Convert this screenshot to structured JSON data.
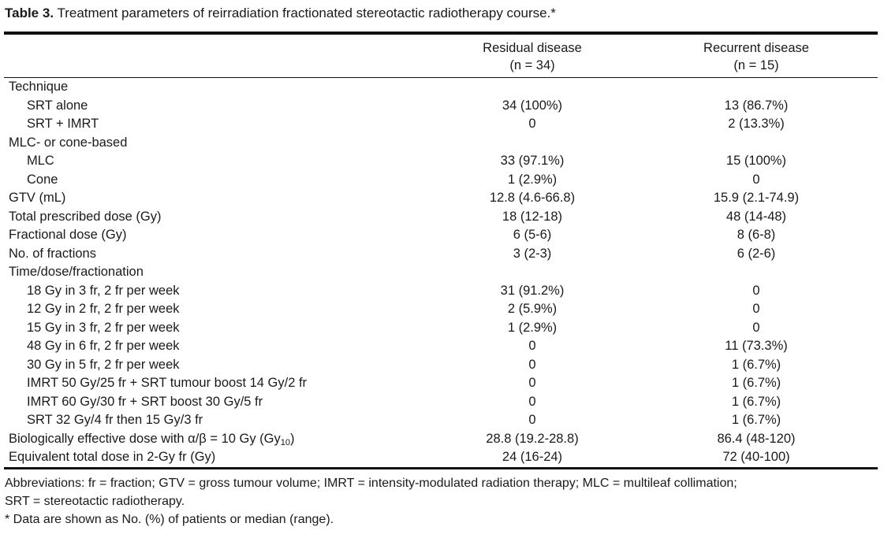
{
  "caption": {
    "label": "Table 3.",
    "text": "Treatment parameters of reirradiation fractionated stereotactic radiotherapy course.*"
  },
  "header": {
    "col1_line1": "Residual disease",
    "col1_line2": "(n = 34)",
    "col2_line1": "Recurrent disease",
    "col2_line2": "(n = 15)"
  },
  "rows": [
    {
      "label": "Technique",
      "residual": "",
      "recurrent": "",
      "level": "top"
    },
    {
      "label": "SRT alone",
      "residual": "34 (100%)",
      "recurrent": "13 (86.7%)",
      "level": "sub"
    },
    {
      "label": "SRT + IMRT",
      "residual": "0",
      "recurrent": "2 (13.3%)",
      "level": "sub"
    },
    {
      "label": "MLC- or cone-based",
      "residual": "",
      "recurrent": "",
      "level": "top"
    },
    {
      "label": "MLC",
      "residual": "33 (97.1%)",
      "recurrent": "15 (100%)",
      "level": "sub"
    },
    {
      "label": "Cone",
      "residual": "1 (2.9%)",
      "recurrent": "0",
      "level": "sub"
    },
    {
      "label": "GTV (mL)",
      "residual": "12.8 (4.6-66.8)",
      "recurrent": "15.9 (2.1-74.9)",
      "level": "top"
    },
    {
      "label": "Total prescribed dose (Gy)",
      "residual": "18 (12-18)",
      "recurrent": "48 (14-48)",
      "level": "top"
    },
    {
      "label": "Fractional dose (Gy)",
      "residual": "6 (5-6)",
      "recurrent": "8 (6-8)",
      "level": "top"
    },
    {
      "label": "No. of fractions",
      "residual": "3 (2-3)",
      "recurrent": "6 (2-6)",
      "level": "top"
    },
    {
      "label": "Time/dose/fractionation",
      "residual": "",
      "recurrent": "",
      "level": "top"
    },
    {
      "label": "18 Gy in 3 fr, 2 fr per week",
      "residual": "31 (91.2%)",
      "recurrent": "0",
      "level": "sub"
    },
    {
      "label": "12 Gy in 2 fr, 2 fr per week",
      "residual": "2 (5.9%)",
      "recurrent": "0",
      "level": "sub"
    },
    {
      "label": "15 Gy in 3 fr, 2 fr per week",
      "residual": "1 (2.9%)",
      "recurrent": "0",
      "level": "sub"
    },
    {
      "label": "48 Gy in 6 fr, 2 fr per week",
      "residual": "0",
      "recurrent": "11 (73.3%)",
      "level": "sub"
    },
    {
      "label": "30 Gy in 5 fr, 2 fr per week",
      "residual": "0",
      "recurrent": "1 (6.7%)",
      "level": "sub"
    },
    {
      "label": "IMRT 50 Gy/25 fr + SRT tumour boost 14 Gy/2 fr",
      "residual": "0",
      "recurrent": "1 (6.7%)",
      "level": "sub"
    },
    {
      "label": "IMRT 60 Gy/30 fr + SRT boost 30 Gy/5 fr",
      "residual": "0",
      "recurrent": "1 (6.7%)",
      "level": "sub"
    },
    {
      "label": "SRT 32 Gy/4 fr then 15 Gy/3 fr",
      "residual": "0",
      "recurrent": "1 (6.7%)",
      "level": "sub"
    },
    {
      "label": "Biologically effective dose with α/β = 10 Gy (Gy",
      "label_sub": "10",
      "label_after": ")",
      "residual": "28.8 (19.2-28.8)",
      "recurrent": "86.4 (48-120)",
      "level": "top"
    },
    {
      "label": "Equivalent total dose in 2-Gy fr (Gy)",
      "residual": "24 (16-24)",
      "recurrent": "72 (40-100)",
      "level": "top"
    }
  ],
  "footnotes": {
    "abbrev_line1": "Abbreviations: fr = fraction; GTV = gross tumour volume; IMRT = intensity-modulated radiation therapy; MLC = multileaf collimation;",
    "abbrev_line2": "SRT = stereotactic radiotherapy.",
    "note": "* Data are shown as No. (%) of patients or median (range)."
  }
}
